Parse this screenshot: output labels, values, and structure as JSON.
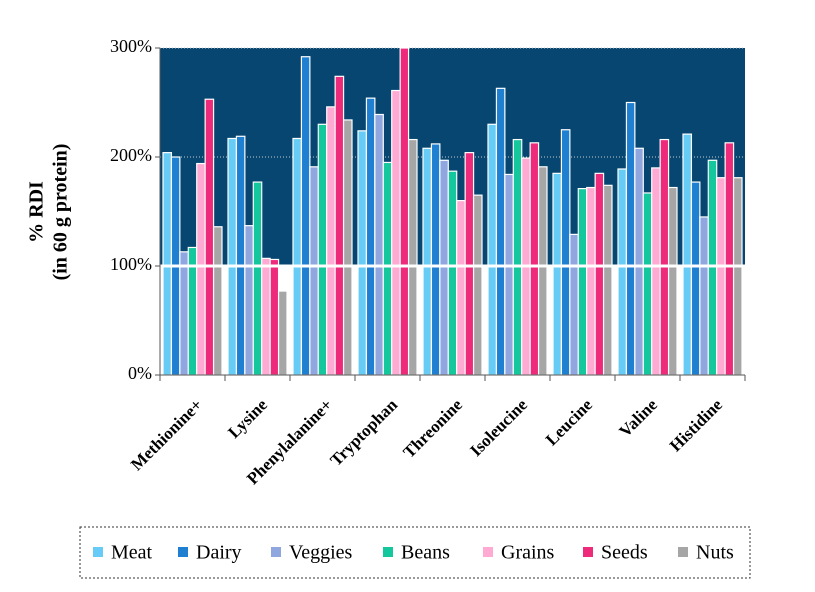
{
  "chart_data": {
    "type": "bar",
    "ylabel": [
      "% RDI",
      "(in 60 g protein)"
    ],
    "categories": [
      "Methionine+",
      "Lysine",
      "Phenylalanine+",
      "Tryptophan",
      "Threonine",
      "Isoleucine",
      "Leucine",
      "Valine",
      "Histidine"
    ],
    "series": [
      {
        "name": "Meat",
        "color": "#66ccf5",
        "values": [
          204,
          217,
          217,
          224,
          208,
          230,
          185,
          189,
          221
        ]
      },
      {
        "name": "Dairy",
        "color": "#1f7fd0",
        "values": [
          200,
          219,
          292,
          254,
          212,
          263,
          225,
          250,
          177
        ]
      },
      {
        "name": "Veggies",
        "color": "#8fa6df",
        "values": [
          113,
          137,
          191,
          239,
          197,
          184,
          129,
          208,
          145
        ]
      },
      {
        "name": "Beans",
        "color": "#15c79d",
        "values": [
          117,
          177,
          230,
          195,
          187,
          216,
          171,
          167,
          197
        ]
      },
      {
        "name": "Grains",
        "color": "#ffaad3",
        "values": [
          194,
          107,
          246,
          261,
          160,
          199,
          172,
          190,
          181
        ]
      },
      {
        "name": "Seeds",
        "color": "#ee2a7b",
        "values": [
          253,
          106,
          274,
          300,
          204,
          213,
          185,
          216,
          213
        ]
      },
      {
        "name": "Nuts",
        "color": "#a6a6a6",
        "values": [
          136,
          77,
          234,
          216,
          165,
          191,
          174,
          172,
          181
        ]
      }
    ],
    "ylim": [
      0,
      300
    ],
    "yticks": [
      {
        "value": 0,
        "label": "0%"
      },
      {
        "value": 100,
        "label": "100%"
      },
      {
        "value": 200,
        "label": "200%"
      },
      {
        "value": 300,
        "label": "300%"
      }
    ],
    "reference_line": 100,
    "background": "#064671",
    "grid": true,
    "legend": "bottom"
  }
}
